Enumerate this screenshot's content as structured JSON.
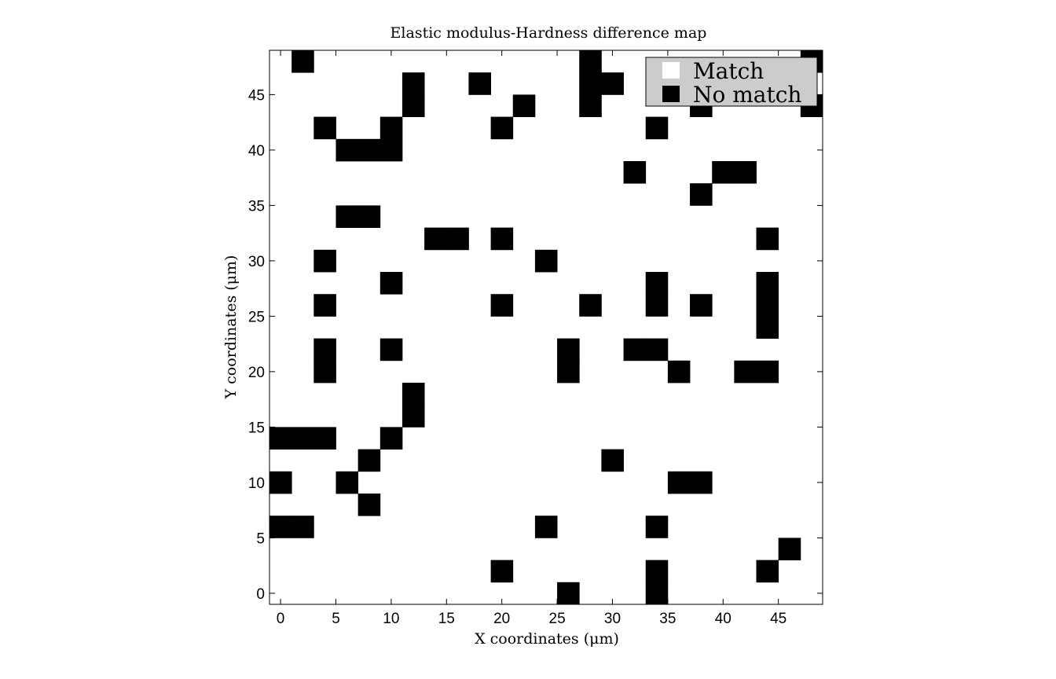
{
  "chart_data": {
    "type": "heatmap",
    "title": "Elastic modulus-Hardness difference map",
    "xlabel": "X coordinates (μm)",
    "ylabel": "Y coordinates (μm)",
    "xlim": [
      -1,
      49
    ],
    "ylim": [
      -1,
      49
    ],
    "grid_step": 2,
    "xticks": [
      0,
      5,
      10,
      15,
      20,
      25,
      30,
      35,
      40,
      45
    ],
    "yticks": [
      0,
      5,
      10,
      15,
      20,
      25,
      30,
      35,
      40,
      45
    ],
    "legend": {
      "position": "top-right",
      "entries": [
        {
          "label": "Match",
          "color": "#ffffff"
        },
        {
          "label": "No match",
          "color": "#000000"
        }
      ]
    },
    "colors": {
      "match": "#ffffff",
      "no_match": "#000000",
      "legend_bg": "#cccccc"
    },
    "no_match_points": [
      [
        2,
        48
      ],
      [
        28,
        48
      ],
      [
        48,
        48
      ],
      [
        12,
        46
      ],
      [
        18,
        46
      ],
      [
        28,
        46
      ],
      [
        30,
        46
      ],
      [
        12,
        44
      ],
      [
        22,
        44
      ],
      [
        28,
        44
      ],
      [
        38,
        44
      ],
      [
        48,
        44
      ],
      [
        4,
        42
      ],
      [
        10,
        42
      ],
      [
        20,
        42
      ],
      [
        34,
        42
      ],
      [
        6,
        40
      ],
      [
        8,
        40
      ],
      [
        10,
        40
      ],
      [
        32,
        38
      ],
      [
        40,
        38
      ],
      [
        42,
        38
      ],
      [
        38,
        36
      ],
      [
        6,
        34
      ],
      [
        8,
        34
      ],
      [
        14,
        32
      ],
      [
        16,
        32
      ],
      [
        20,
        32
      ],
      [
        44,
        32
      ],
      [
        4,
        30
      ],
      [
        24,
        30
      ],
      [
        10,
        28
      ],
      [
        34,
        28
      ],
      [
        44,
        28
      ],
      [
        4,
        26
      ],
      [
        20,
        26
      ],
      [
        28,
        26
      ],
      [
        34,
        26
      ],
      [
        38,
        26
      ],
      [
        44,
        26
      ],
      [
        44,
        24
      ],
      [
        4,
        22
      ],
      [
        10,
        22
      ],
      [
        26,
        22
      ],
      [
        32,
        22
      ],
      [
        34,
        22
      ],
      [
        4,
        20
      ],
      [
        26,
        20
      ],
      [
        36,
        20
      ],
      [
        42,
        20
      ],
      [
        44,
        20
      ],
      [
        12,
        18
      ],
      [
        12,
        16
      ],
      [
        0,
        14
      ],
      [
        2,
        14
      ],
      [
        4,
        14
      ],
      [
        10,
        14
      ],
      [
        8,
        12
      ],
      [
        30,
        12
      ],
      [
        0,
        10
      ],
      [
        6,
        10
      ],
      [
        36,
        10
      ],
      [
        38,
        10
      ],
      [
        8,
        8
      ],
      [
        0,
        6
      ],
      [
        2,
        6
      ],
      [
        24,
        6
      ],
      [
        34,
        6
      ],
      [
        46,
        4
      ],
      [
        20,
        2
      ],
      [
        34,
        2
      ],
      [
        44,
        2
      ],
      [
        26,
        0
      ],
      [
        34,
        0
      ]
    ]
  }
}
